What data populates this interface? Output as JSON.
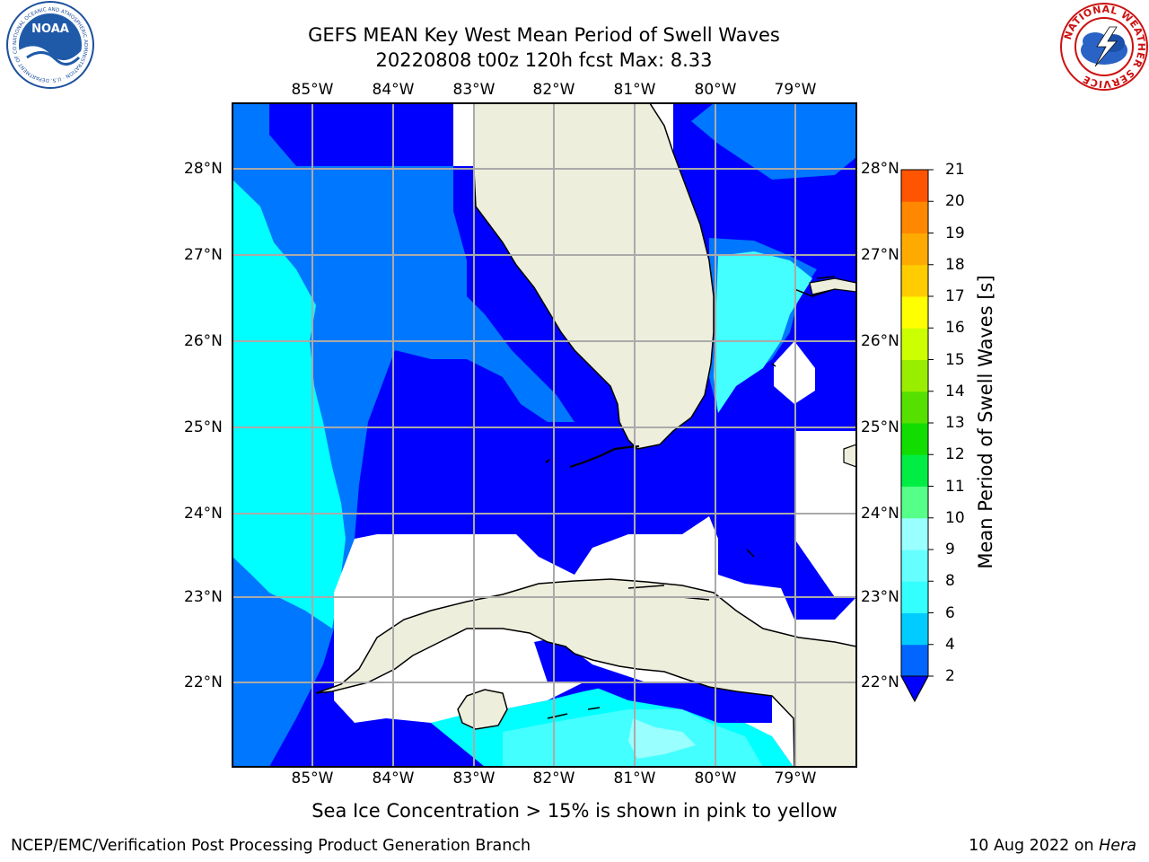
{
  "title_line1": "GEFS MEAN Key West Mean Period of Swell Waves",
  "title_line2": "20220808 t00z 120h fcst   Max: 8.33",
  "lon_labels": [
    "85°W",
    "84°W",
    "83°W",
    "82°W",
    "81°W",
    "80°W",
    "79°W"
  ],
  "lat_labels": [
    "28°N",
    "27°N",
    "26°N",
    "25°N",
    "24°N",
    "23°N",
    "22°N"
  ],
  "colorbar": {
    "label": "Mean Period of Swell Waves [s]",
    "ticks": [
      "2",
      "4",
      "6",
      "8",
      "9",
      "10",
      "11",
      "12",
      "13",
      "14",
      "15",
      "16",
      "17",
      "18",
      "19",
      "20",
      "21"
    ],
    "colors": [
      "#0066ff",
      "#00ccff",
      "#33ffff",
      "#66ffff",
      "#99ffff",
      "#55ff88",
      "#00ee44",
      "#11dd00",
      "#55e000",
      "#99ee00",
      "#ccff00",
      "#ffff00",
      "#ffcc00",
      "#ffaa00",
      "#ff8800",
      "#ff5500",
      "#ff2200",
      "#ff0000"
    ],
    "extend_color": "#0000ff"
  },
  "colors": {
    "deep": "#0000ff",
    "mid": "#0077ff",
    "cyan": "#00ffff",
    "light": "#44ffff",
    "pale": "#99ffff",
    "land": "#eeeedd"
  },
  "subtitle": "Sea Ice Concentration > 15% is shown in pink to yellow",
  "footer_left": "NCEP/EMC/Verification Post Processing Product Generation Branch",
  "footer_date": "10 Aug 2022 on ",
  "footer_machine": "Hera",
  "logos": {
    "left": "NOAA",
    "left_ring": "NATIONAL OCEANIC AND ATMOSPHERIC ADMINISTRATION · U.S. DEPARTMENT OF COMMERCE",
    "right_ring": "NATIONAL WEATHER SERVICE"
  }
}
